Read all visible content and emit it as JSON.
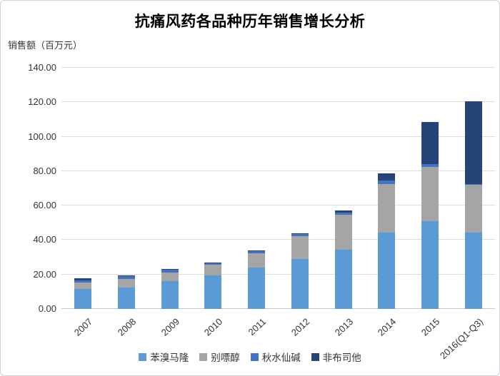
{
  "chart_data": {
    "type": "bar",
    "stacked": true,
    "title": "抗痛风药各品种历年销售增长分析",
    "ylabel": "销售额（百万元）",
    "xlabel": "",
    "categories": [
      "2007",
      "2008",
      "2009",
      "2010",
      "2011",
      "2012",
      "2013",
      "2014",
      "2015",
      "2016(Q1-Q3)"
    ],
    "series": [
      {
        "name": "苯溴马隆",
        "color": "#5B9BD5",
        "values": [
          11.5,
          12.5,
          16.0,
          19.3,
          24.1,
          28.9,
          34.5,
          44.3,
          51.0,
          44.4
        ]
      },
      {
        "name": "别嘌醇",
        "color": "#A5A5A5",
        "values": [
          4.0,
          4.9,
          5.0,
          6.2,
          8.3,
          13.5,
          20.0,
          28.3,
          31.5,
          27.5
        ]
      },
      {
        "name": "秋水仙碱",
        "color": "#4472C4",
        "values": [
          1.0,
          1.6,
          1.8,
          1.0,
          1.1,
          1.2,
          1.5,
          2.0,
          1.8,
          0.8
        ]
      },
      {
        "name": "非布司他",
        "color": "#264478",
        "values": [
          1.5,
          0.4,
          0.4,
          0.3,
          0.4,
          0.4,
          1.0,
          4.0,
          24.5,
          47.8
        ]
      }
    ],
    "ylim": [
      0,
      140
    ],
    "y_tick_step": 20,
    "y_tick_format": "0.00",
    "grid": true,
    "legend_position": "bottom",
    "colors": {
      "gridline": "#DCDCDC",
      "axis_text": "#333333",
      "title_text": "#000000"
    }
  }
}
